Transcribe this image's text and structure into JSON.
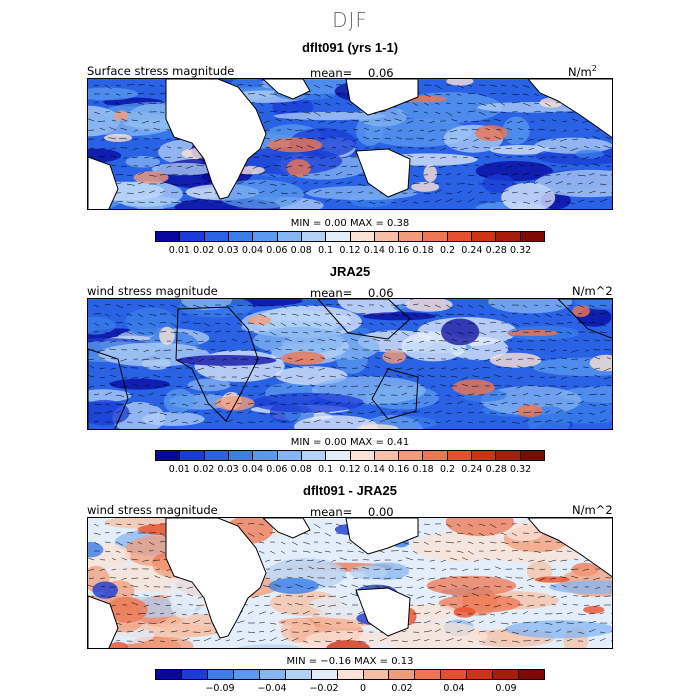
{
  "page": {
    "title": "DJF"
  },
  "palette": [
    "#08089e",
    "#1a3cd6",
    "#2a62e6",
    "#3a7ee8",
    "#5a9aee",
    "#85b5f2",
    "#b3d2f6",
    "#e4eefa",
    "#fbe2d6",
    "#f7c0a6",
    "#f39c7a",
    "#ee7650",
    "#e7502c",
    "#cf3316",
    "#a81c0a",
    "#7e0a04"
  ],
  "panels": [
    {
      "title": "dflt091 (yrs 1-1)",
      "var_label": "Surface stress magnitude",
      "mean_label": "mean=",
      "mean_value": "0.06",
      "units": "N/m",
      "units_sup": "2",
      "minmax": "MIN =    0.00  MAX =    0.38",
      "ticks": [
        "0.01",
        "0.02",
        "0.03",
        "0.04",
        "0.06",
        "0.08",
        "0.1",
        "0.12",
        "0.14",
        "0.16",
        "0.18",
        "0.2",
        "0.24",
        "0.28",
        "0.32"
      ],
      "mode": "abs"
    },
    {
      "title": "JRA25",
      "var_label": "wind stress magnitude",
      "mean_label": "mean=",
      "mean_value": "0.06",
      "units": "N/m^2",
      "units_sup": "",
      "minmax": "MIN =    0.00  MAX =    0.41",
      "ticks": [
        "0.01",
        "0.02",
        "0.03",
        "0.04",
        "0.06",
        "0.08",
        "0.1",
        "0.12",
        "0.14",
        "0.16",
        "0.18",
        "0.2",
        "0.24",
        "0.28",
        "0.32"
      ],
      "mode": "abs"
    },
    {
      "title": "dflt091 - JRA25",
      "var_label": "wind stress magnitude",
      "mean_label": "mean=",
      "mean_value": "0.00",
      "units": "N/m^2",
      "units_sup": "",
      "minmax": "MIN =  −0.16  MAX =    0.13",
      "ticks": [
        "−0.09",
        "−0.04",
        "−0.02",
        "0",
        "0.02",
        "0.04",
        "0.09"
      ],
      "mode": "diff"
    }
  ]
}
